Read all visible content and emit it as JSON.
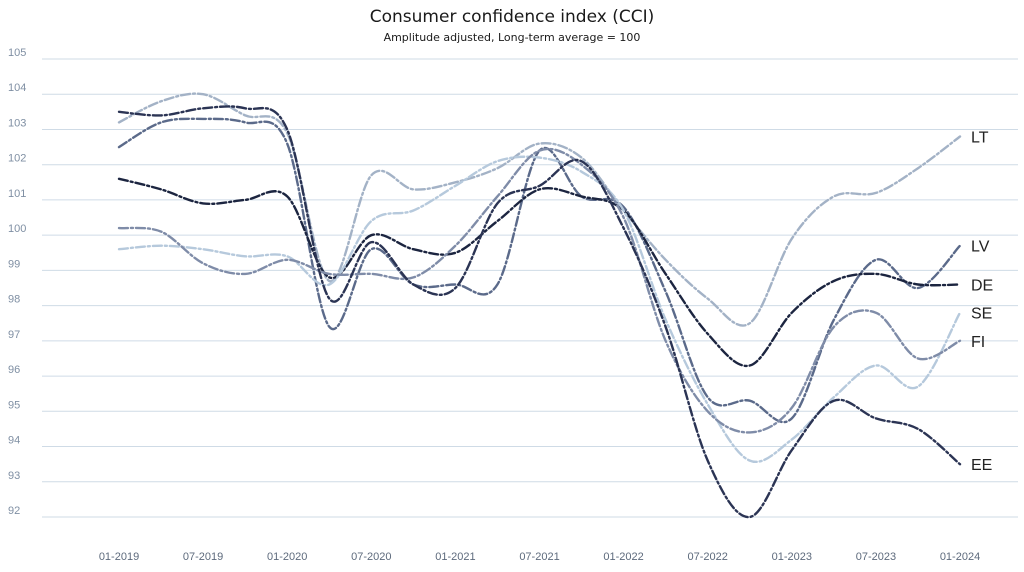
{
  "chart_data": {
    "type": "line",
    "title": "Consumer confidence index (CCI)",
    "subtitle": "Amplitude adjusted, Long-term average = 100",
    "xlabel": "",
    "ylabel": "",
    "ylim": [
      92,
      105
    ],
    "grid": true,
    "yticks": [
      "92",
      "93",
      "94",
      "95",
      "96",
      "97",
      "98",
      "99",
      "100",
      "101",
      "102",
      "103",
      "104",
      "105"
    ],
    "xticks": [
      "01-2019",
      "07-2019",
      "01-2020",
      "07-2020",
      "01-2021",
      "07-2021",
      "01-2022",
      "07-2022",
      "01-2023",
      "07-2023",
      "01-2024"
    ],
    "x": [
      "2019-01",
      "2019-04",
      "2019-07",
      "2019-10",
      "2020-01",
      "2020-04",
      "2020-07",
      "2020-10",
      "2021-01",
      "2021-04",
      "2021-07",
      "2021-10",
      "2022-01",
      "2022-04",
      "2022-07",
      "2022-10",
      "2023-01",
      "2023-04",
      "2023-07",
      "2023-10",
      "2024-01"
    ],
    "series": [
      {
        "name": "LT",
        "color": "#a3b2c6",
        "values": [
          103.2,
          103.8,
          104.0,
          103.4,
          102.9,
          98.7,
          101.7,
          101.3,
          101.5,
          101.9,
          102.6,
          102.2,
          100.7,
          99.3,
          98.2,
          97.5,
          99.9,
          101.1,
          101.2,
          101.9,
          102.8
        ]
      },
      {
        "name": "LV",
        "color": "#5b6a8a",
        "values": [
          102.5,
          103.2,
          103.3,
          103.2,
          102.6,
          97.4,
          99.6,
          98.6,
          98.6,
          98.6,
          102.4,
          101.1,
          100.8,
          98.4,
          95.4,
          95.3,
          94.8,
          97.6,
          99.3,
          98.5,
          99.7
        ]
      },
      {
        "name": "DE",
        "color": "#1c2540",
        "values": [
          101.6,
          101.3,
          100.9,
          101.0,
          101.1,
          98.8,
          100.0,
          99.6,
          99.5,
          100.4,
          101.3,
          101.1,
          100.7,
          98.9,
          97.2,
          96.3,
          97.8,
          98.7,
          98.9,
          98.6,
          98.6
        ]
      },
      {
        "name": "SE",
        "color": "#b6c9dc",
        "values": [
          99.6,
          99.7,
          99.6,
          99.4,
          99.4,
          98.6,
          100.4,
          100.7,
          101.4,
          102.1,
          102.2,
          101.8,
          100.7,
          97.6,
          95.2,
          93.6,
          94.2,
          95.4,
          96.3,
          95.7,
          97.8
        ]
      },
      {
        "name": "FI",
        "color": "#7f8ca8",
        "values": [
          100.2,
          100.1,
          99.2,
          98.9,
          99.3,
          98.9,
          98.9,
          98.8,
          99.7,
          101.1,
          102.4,
          102.0,
          100.5,
          97.0,
          95.0,
          94.4,
          95.1,
          97.4,
          97.8,
          96.5,
          97.0
        ]
      },
      {
        "name": "EE",
        "color": "#2b3454",
        "values": [
          103.5,
          103.4,
          103.6,
          103.6,
          103.0,
          98.2,
          99.8,
          98.6,
          98.5,
          100.9,
          101.4,
          102.1,
          100.2,
          97.4,
          93.6,
          92.0,
          93.9,
          95.3,
          94.8,
          94.5,
          93.5
        ]
      }
    ]
  }
}
